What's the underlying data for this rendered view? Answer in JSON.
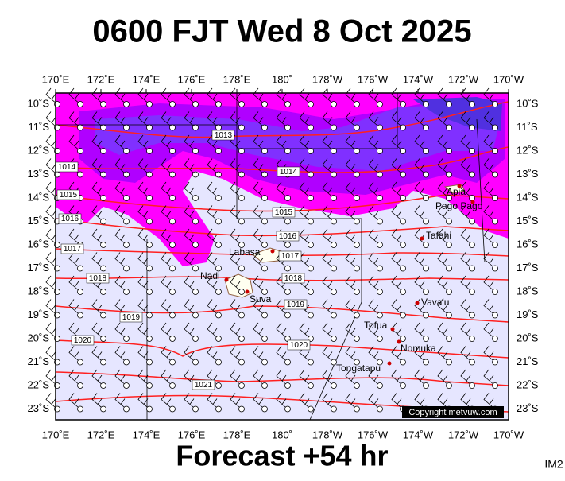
{
  "header": {
    "title": "0600 FJT Wed 8 Oct 2025"
  },
  "map": {
    "lon_labels": [
      "170˚E",
      "172˚E",
      "174˚E",
      "176˚E",
      "178˚E",
      "180˚",
      "178˚W",
      "176˚W",
      "174˚W",
      "172˚W",
      "170˚W"
    ],
    "lat_labels": [
      "10˚S",
      "11˚S",
      "12˚S",
      "13˚S",
      "14˚S",
      "15˚S",
      "16˚S",
      "17˚S",
      "18˚S",
      "19˚S",
      "20˚S",
      "21˚S",
      "22˚S",
      "23˚S"
    ],
    "places": [
      "Apia",
      "Pago Pago",
      "Tafahi",
      "Labasa",
      "Nadi",
      "Suva",
      "Vava'u",
      "Tofua",
      "Nomuka",
      "Tongatapu"
    ],
    "isobar_labels": [
      1013,
      1014,
      1014,
      1015,
      1015,
      1016,
      1016,
      1017,
      1017,
      1018,
      1018,
      1019,
      1019,
      1020,
      1020,
      1021
    ],
    "copyright": "Copyright metvuw.com"
  },
  "footer": {
    "forecast": "Forecast +54 hr",
    "code": "IM2"
  }
}
